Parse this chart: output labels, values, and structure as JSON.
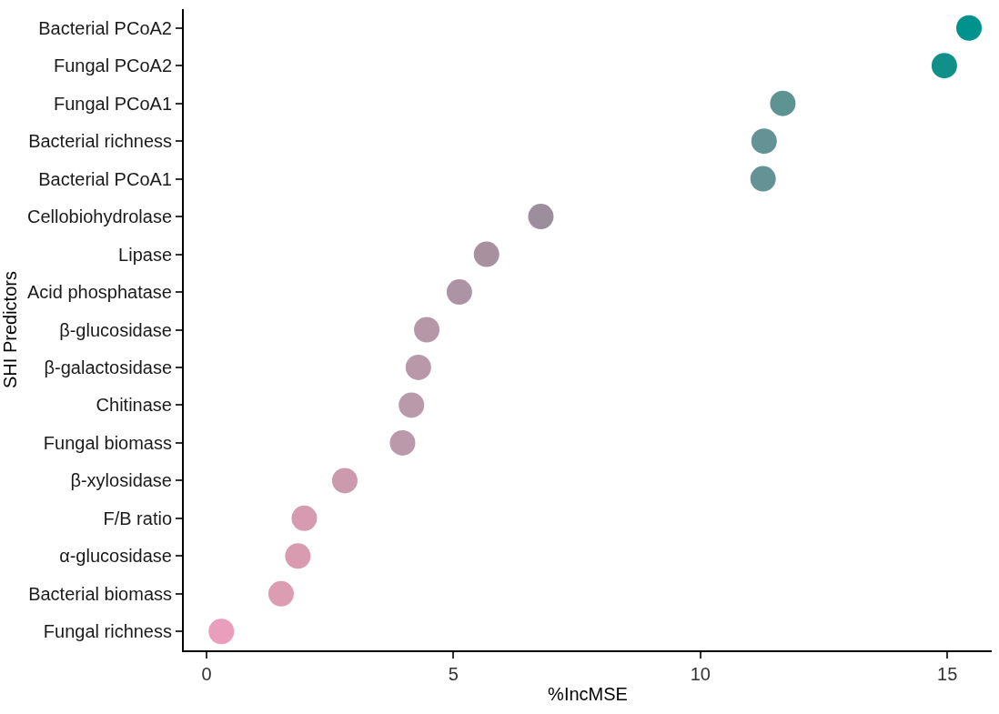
{
  "chart_data": {
    "type": "scatter",
    "xlabel": "%IncMSE",
    "ylabel": "SHI Predictors",
    "categories": [
      "Bacterial PCoA2",
      "Fungal PCoA2",
      "Fungal PCoA1",
      "Bacterial richness",
      "Bacterial PCoA1",
      "Cellobiohydrolase",
      "Lipase",
      "Acid phosphatase",
      "β-glucosidase",
      "β-galactosidase",
      "Chitinase",
      "Fungal biomass",
      "β-xylosidase",
      "F/B ratio",
      "α-glucosidase",
      "Bacterial biomass",
      "Fungal richness"
    ],
    "orientation": "horizontal",
    "values": [
      15.44,
      14.94,
      11.67,
      11.29,
      11.27,
      6.77,
      5.67,
      5.12,
      4.46,
      4.29,
      4.15,
      3.97,
      2.8,
      1.98,
      1.85,
      1.51,
      0.3
    ],
    "colors": [
      "#00938e",
      "#109089",
      "#5e9393",
      "#659295",
      "#659295",
      "#9c8e9c",
      "#a8909f",
      "#ad94a4",
      "#b697a8",
      "#b898a9",
      "#ba99aa",
      "#bb99aa",
      "#cb9aac",
      "#d69bb0",
      "#d89bb0",
      "#dc9cb2",
      "#eb9dbc"
    ],
    "xlim": [
      -0.46,
      15.9
    ],
    "xticks": [
      0,
      5,
      10,
      15
    ],
    "marker": "circle"
  }
}
